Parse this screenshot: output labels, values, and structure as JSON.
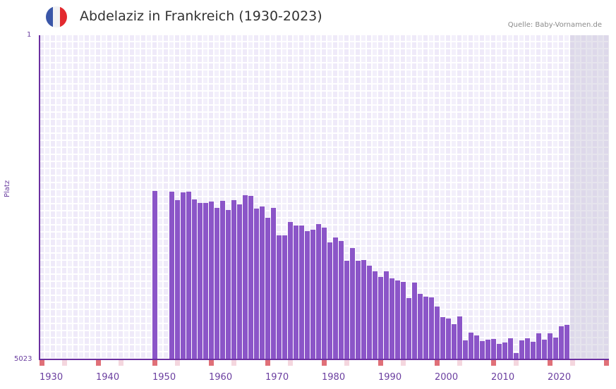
{
  "header": {
    "title": "Abdelaziz in Frankreich (1930-2023)",
    "source": "Quelle: Baby-Vornamen.de",
    "flag_colors": [
      "#3a56a8",
      "#f2f2f4",
      "#e32a2f"
    ]
  },
  "axes": {
    "y_top_label": "1",
    "y_bottom_label": "5023",
    "y_title": "Platz",
    "x_labels": [
      "1930",
      "1940",
      "1950",
      "1960",
      "1970",
      "1980",
      "1990",
      "2000",
      "2010",
      "2020"
    ]
  },
  "colors": {
    "bar": "#8b55c8",
    "axis": "#6b2fa0",
    "marker_decade": "#e07078",
    "marker_half": "#f4d6de"
  },
  "chart_data": {
    "type": "bar",
    "title": "Abdelaziz in Frankreich (1930-2023)",
    "xlabel": "",
    "ylabel": "Platz",
    "ylim": [
      5023,
      1
    ],
    "y_inverted": true,
    "xlim": [
      1930,
      2030
    ],
    "grid": true,
    "source": "Quelle: Baby-Vornamen.de",
    "x": [
      1950,
      1953,
      1954,
      1955,
      1956,
      1957,
      1958,
      1959,
      1960,
      1961,
      1962,
      1963,
      1964,
      1965,
      1966,
      1967,
      1968,
      1969,
      1970,
      1971,
      1972,
      1973,
      1974,
      1975,
      1976,
      1977,
      1978,
      1979,
      1980,
      1981,
      1982,
      1983,
      1984,
      1985,
      1986,
      1987,
      1988,
      1989,
      1990,
      1991,
      1992,
      1993,
      1994,
      1995,
      1996,
      1997,
      1998,
      1999,
      2000,
      2001,
      2002,
      2003,
      2004,
      2005,
      2006,
      2007,
      2008,
      2009,
      2010,
      2011,
      2012,
      2013,
      2014,
      2015,
      2016,
      2017,
      2018,
      2019,
      2020,
      2021,
      2022,
      2023
    ],
    "values": [
      2425,
      2436,
      2567,
      2447,
      2436,
      2556,
      2611,
      2611,
      2589,
      2687,
      2578,
      2720,
      2567,
      2632,
      2490,
      2501,
      2698,
      2665,
      2840,
      2687,
      3113,
      3113,
      2905,
      2960,
      2960,
      3047,
      3025,
      2938,
      2993,
      3222,
      3146,
      3200,
      3506,
      3309,
      3506,
      3495,
      3582,
      3670,
      3757,
      3670,
      3779,
      3812,
      3833,
      4085,
      3844,
      4019,
      4063,
      4074,
      4216,
      4380,
      4402,
      4489,
      4369,
      4740,
      4620,
      4664,
      4751,
      4729,
      4718,
      4795,
      4773,
      4707,
      4937,
      4740,
      4707,
      4762,
      4631,
      4729,
      4631,
      4697,
      4522,
      4500
    ]
  }
}
